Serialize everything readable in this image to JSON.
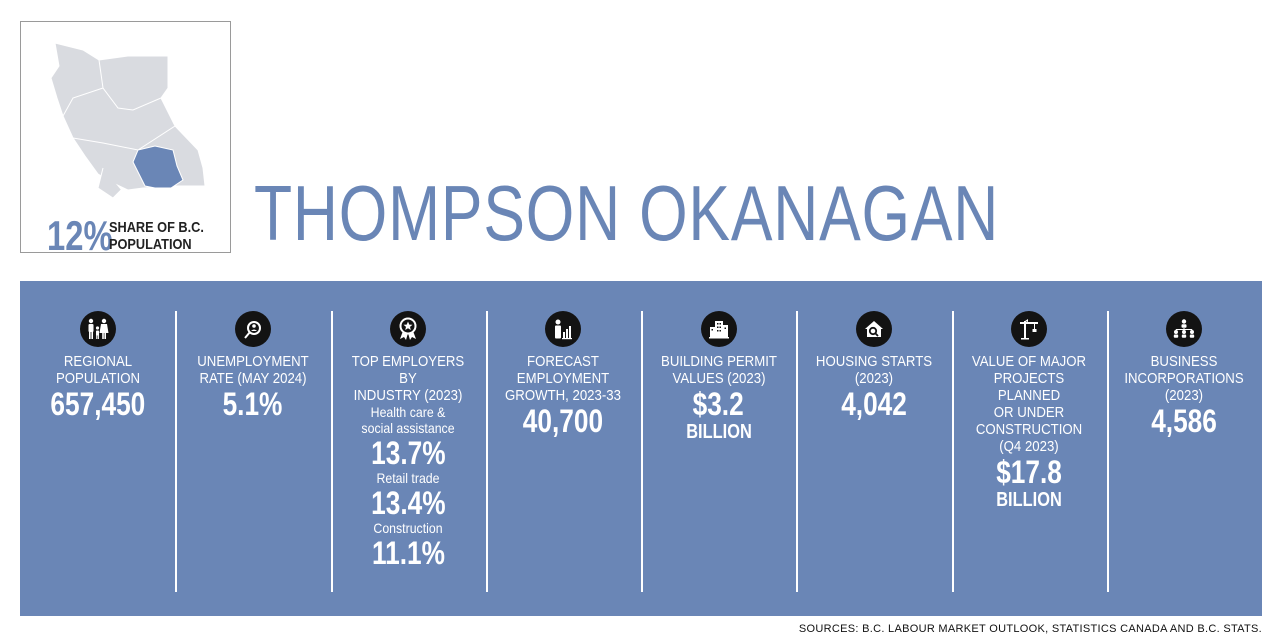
{
  "header": {
    "region_title": "THOMPSON OKANAGAN",
    "share_percent": "12%",
    "share_label_line1": "SHARE OF B.C.",
    "share_label_line2": "POPULATION"
  },
  "colors": {
    "accent": "#6a86b6",
    "map_region": "#d9dbe0",
    "map_highlight": "#6a86b6",
    "icon_bg": "#131313"
  },
  "stats": [
    {
      "icon": "family-icon",
      "label": [
        "REGIONAL",
        "POPULATION"
      ],
      "value": "657,450"
    },
    {
      "icon": "job-search-icon",
      "label": [
        "UNEMPLOYMENT",
        "RATE (MAY 2024)"
      ],
      "value": "5.1%"
    },
    {
      "icon": "award-ribbon-icon",
      "label": [
        "TOP EMPLOYERS BY",
        "INDUSTRY (2023)"
      ],
      "industries": [
        {
          "name": [
            "Health care &",
            "social assistance"
          ],
          "value": "13.7%"
        },
        {
          "name": [
            "Retail trade"
          ],
          "value": "13.4%"
        },
        {
          "name": [
            "Construction"
          ],
          "value": "11.1%"
        }
      ]
    },
    {
      "icon": "growth-chart-person-icon",
      "label": [
        "FORECAST",
        "EMPLOYMENT",
        "GROWTH, 2023-33"
      ],
      "value": "40,700"
    },
    {
      "icon": "buildings-icon",
      "label": [
        "BUILDING PERMIT",
        "VALUES (2023)"
      ],
      "value": "$3.2",
      "unit": "BILLION"
    },
    {
      "icon": "house-search-icon",
      "label": [
        "HOUSING STARTS",
        "(2023)"
      ],
      "value": "4,042"
    },
    {
      "icon": "crane-icon",
      "label": [
        "VALUE OF MAJOR",
        "PROJECTS PLANNED",
        "OR UNDER",
        "CONSTRUCTION",
        "(Q4 2023)"
      ],
      "value": "$17.8",
      "unit": "BILLION"
    },
    {
      "icon": "network-people-icon",
      "label": [
        "BUSINESS",
        "INCORPORATIONS",
        "(2023)"
      ],
      "value": "4,586"
    }
  ],
  "sources": "SOURCES: B.C. LABOUR MARKET OUTLOOK, STATISTICS CANADA AND B.C. STATS."
}
